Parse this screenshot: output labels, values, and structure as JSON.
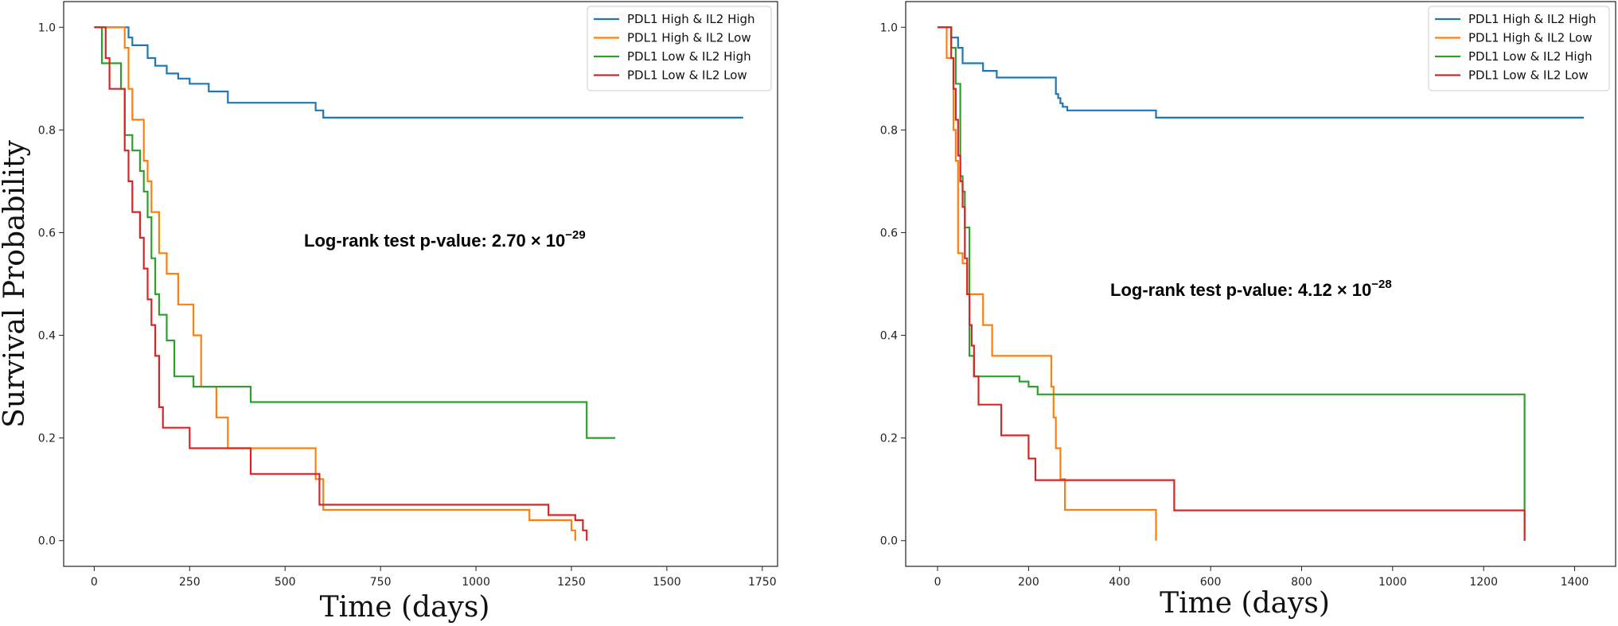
{
  "chart_data": [
    {
      "type": "line",
      "step": true,
      "title": "",
      "xlabel": "Time (days)",
      "ylabel": "Survival Probability",
      "xlim": [
        -80,
        1790
      ],
      "ylim": [
        -0.05,
        1.05
      ],
      "xticks": [
        0,
        250,
        500,
        750,
        1000,
        1250,
        1500,
        1750
      ],
      "yticks": [
        0.0,
        0.2,
        0.4,
        0.6,
        0.8,
        1.0
      ],
      "xtick_labels": [
        "0",
        "250",
        "500",
        "750",
        "1000",
        "1250",
        "1500",
        "1750"
      ],
      "ytick_labels": [
        "0.0",
        "0.2",
        "0.4",
        "0.6",
        "0.8",
        "1.0"
      ],
      "annotation": {
        "prefix": "Log-rank test p-value: 2.70 × 10",
        "exponent": "−29"
      },
      "legend_position": "top-right",
      "series": [
        {
          "name": "PDL1 High & IL2 High",
          "color": "#1f77b4",
          "x": [
            0,
            90,
            100,
            140,
            160,
            190,
            220,
            250,
            300,
            350,
            580,
            600,
            1700
          ],
          "y": [
            1.0,
            0.98,
            0.965,
            0.94,
            0.925,
            0.91,
            0.9,
            0.89,
            0.875,
            0.853,
            0.838,
            0.824,
            0.824
          ]
        },
        {
          "name": "PDL1 High & IL2 Low",
          "color": "#ff7f0e",
          "x": [
            0,
            80,
            90,
            100,
            110,
            130,
            140,
            150,
            170,
            190,
            220,
            260,
            280,
            320,
            350,
            580,
            600,
            1140,
            1250,
            1260
          ],
          "y": [
            1.0,
            0.96,
            0.88,
            0.82,
            0.82,
            0.74,
            0.7,
            0.64,
            0.56,
            0.52,
            0.46,
            0.4,
            0.3,
            0.24,
            0.18,
            0.12,
            0.06,
            0.04,
            0.02,
            0.0
          ],
          "end_drop": true
        },
        {
          "name": "PDL1 Low & IL2 High",
          "color": "#2ca02c",
          "x": [
            0,
            20,
            70,
            80,
            100,
            120,
            130,
            140,
            150,
            160,
            170,
            190,
            210,
            260,
            330,
            410,
            1290,
            1365
          ],
          "y": [
            1.0,
            0.93,
            0.88,
            0.79,
            0.76,
            0.72,
            0.68,
            0.63,
            0.55,
            0.48,
            0.44,
            0.39,
            0.32,
            0.3,
            0.3,
            0.27,
            0.2,
            0.2
          ]
        },
        {
          "name": "PDL1 Low & IL2 Low",
          "color": "#d62728",
          "x": [
            0,
            30,
            40,
            50,
            80,
            90,
            100,
            120,
            130,
            140,
            150,
            160,
            170,
            180,
            250,
            410,
            590,
            1190,
            1260,
            1280,
            1290
          ],
          "y": [
            1.0,
            0.94,
            0.88,
            0.88,
            0.76,
            0.7,
            0.64,
            0.59,
            0.53,
            0.47,
            0.42,
            0.36,
            0.26,
            0.22,
            0.18,
            0.13,
            0.07,
            0.05,
            0.04,
            0.02,
            0.0
          ],
          "end_drop": true
        }
      ]
    },
    {
      "type": "line",
      "step": true,
      "title": "",
      "xlabel": "Time (days)",
      "ylabel": "",
      "xlim": [
        -70,
        1490
      ],
      "ylim": [
        -0.05,
        1.05
      ],
      "xticks": [
        0,
        200,
        400,
        600,
        800,
        1000,
        1200,
        1400
      ],
      "yticks": [
        0.0,
        0.2,
        0.4,
        0.6,
        0.8,
        1.0
      ],
      "xtick_labels": [
        "0",
        "200",
        "400",
        "600",
        "800",
        "1000",
        "1200",
        "1400"
      ],
      "ytick_labels": [
        "0.0",
        "0.2",
        "0.4",
        "0.6",
        "0.8",
        "1.0"
      ],
      "annotation": {
        "prefix": "Log-rank test p-value: 4.12 × 10",
        "exponent": "−28"
      },
      "legend_position": "top-right",
      "series": [
        {
          "name": "PDL1 High & IL2 High",
          "color": "#1f77b4",
          "x": [
            0,
            30,
            45,
            55,
            100,
            130,
            260,
            265,
            270,
            275,
            285,
            480,
            1420
          ],
          "y": [
            1.0,
            0.98,
            0.96,
            0.93,
            0.915,
            0.902,
            0.87,
            0.862,
            0.852,
            0.845,
            0.838,
            0.824,
            0.824
          ]
        },
        {
          "name": "PDL1 High & IL2 Low",
          "color": "#ff7f0e",
          "x": [
            0,
            20,
            35,
            40,
            45,
            55,
            65,
            80,
            100,
            120,
            250,
            255,
            260,
            270,
            280,
            480
          ],
          "y": [
            1.0,
            0.94,
            0.8,
            0.74,
            0.56,
            0.54,
            0.48,
            0.48,
            0.42,
            0.36,
            0.3,
            0.24,
            0.18,
            0.12,
            0.06,
            0.0
          ],
          "end_drop": true
        },
        {
          "name": "PDL1 Low & IL2 High",
          "color": "#2ca02c",
          "x": [
            0,
            30,
            40,
            50,
            55,
            60,
            70,
            80,
            180,
            200,
            220,
            1290
          ],
          "y": [
            1.0,
            0.96,
            0.89,
            0.71,
            0.68,
            0.61,
            0.36,
            0.32,
            0.31,
            0.3,
            0.285,
            0.0
          ],
          "end_drop": true
        },
        {
          "name": "PDL1 Low & IL2 Low",
          "color": "#d62728",
          "x": [
            0,
            30,
            35,
            40,
            45,
            50,
            55,
            60,
            65,
            70,
            75,
            80,
            90,
            140,
            200,
            215,
            520,
            1290
          ],
          "y": [
            1.0,
            0.94,
            0.88,
            0.82,
            0.75,
            0.7,
            0.65,
            0.55,
            0.48,
            0.42,
            0.38,
            0.32,
            0.265,
            0.205,
            0.16,
            0.118,
            0.059,
            0.0
          ],
          "end_drop": true
        }
      ]
    }
  ]
}
